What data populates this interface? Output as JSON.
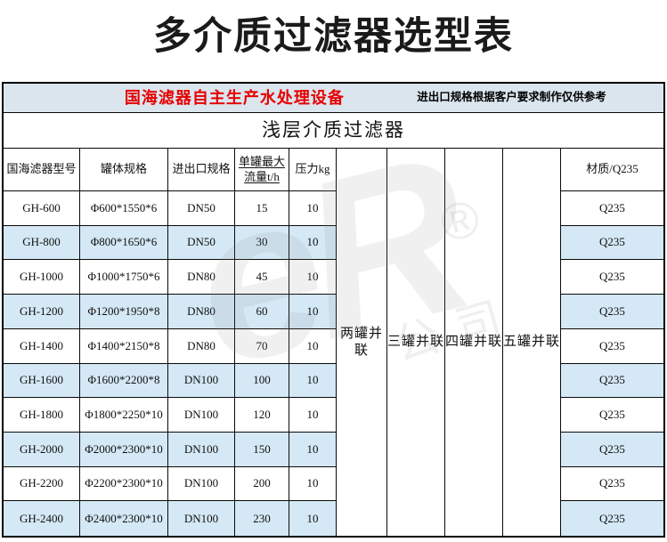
{
  "page_title": "多介质过滤器选型表",
  "banner": {
    "left": "国海滤器自主生产水处理设备",
    "right": "进出口规格根据客户要求制作仅供参考"
  },
  "subtitle": "浅层介质过滤器",
  "columns": {
    "model": "国海滤器型号",
    "tank_spec": "罐体规格",
    "port_spec": "进出口规格",
    "max_flow_line1": "单罐最大",
    "max_flow_line2": "流量t/h",
    "pressure": "压力kg",
    "material": "材质/Q235"
  },
  "parallel_columns": [
    "两罐并联",
    "三罐并联",
    "四罐并联",
    "五罐并联"
  ],
  "rows": [
    {
      "model": "GH-600",
      "tank_spec": "Φ600*1550*6",
      "port_spec": "DN50",
      "max_flow": "15",
      "pressure": "10",
      "material": "Q235"
    },
    {
      "model": "GH-800",
      "tank_spec": "Φ800*1650*6",
      "port_spec": "DN50",
      "max_flow": "30",
      "pressure": "10",
      "material": "Q235"
    },
    {
      "model": "GH-1000",
      "tank_spec": "Φ1000*1750*6",
      "port_spec": "DN80",
      "max_flow": "45",
      "pressure": "10",
      "material": "Q235"
    },
    {
      "model": "GH-1200",
      "tank_spec": "Φ1200*1950*8",
      "port_spec": "DN80",
      "max_flow": "60",
      "pressure": "10",
      "material": "Q235"
    },
    {
      "model": "GH-1400",
      "tank_spec": "Φ1400*2150*8",
      "port_spec": "DN80",
      "max_flow": "70",
      "pressure": "10",
      "material": "Q235"
    },
    {
      "model": "GH-1600",
      "tank_spec": "Φ1600*2200*8",
      "port_spec": "DN100",
      "max_flow": "100",
      "pressure": "10",
      "material": "Q235"
    },
    {
      "model": "GH-1800",
      "tank_spec": "Φ1800*2250*10",
      "port_spec": "DN100",
      "max_flow": "120",
      "pressure": "10",
      "material": "Q235"
    },
    {
      "model": "GH-2000",
      "tank_spec": "Φ2000*2300*10",
      "port_spec": "DN100",
      "max_flow": "150",
      "pressure": "10",
      "material": "Q235"
    },
    {
      "model": "GH-2200",
      "tank_spec": "Φ2200*2300*10",
      "port_spec": "DN100",
      "max_flow": "200",
      "pressure": "10",
      "material": "Q235"
    },
    {
      "model": "GH-2400",
      "tank_spec": "Φ2400*2300*10",
      "port_spec": "DN100",
      "max_flow": "230",
      "pressure": "10",
      "material": "Q235"
    }
  ],
  "watermark": {
    "big": "eR",
    "registered": "®",
    "small": "公司"
  },
  "colors": {
    "accent_red": "#e60000",
    "row_alt_blue": "#d4e8f5",
    "banner_bg": "#dbe5ee",
    "border": "#000000"
  }
}
